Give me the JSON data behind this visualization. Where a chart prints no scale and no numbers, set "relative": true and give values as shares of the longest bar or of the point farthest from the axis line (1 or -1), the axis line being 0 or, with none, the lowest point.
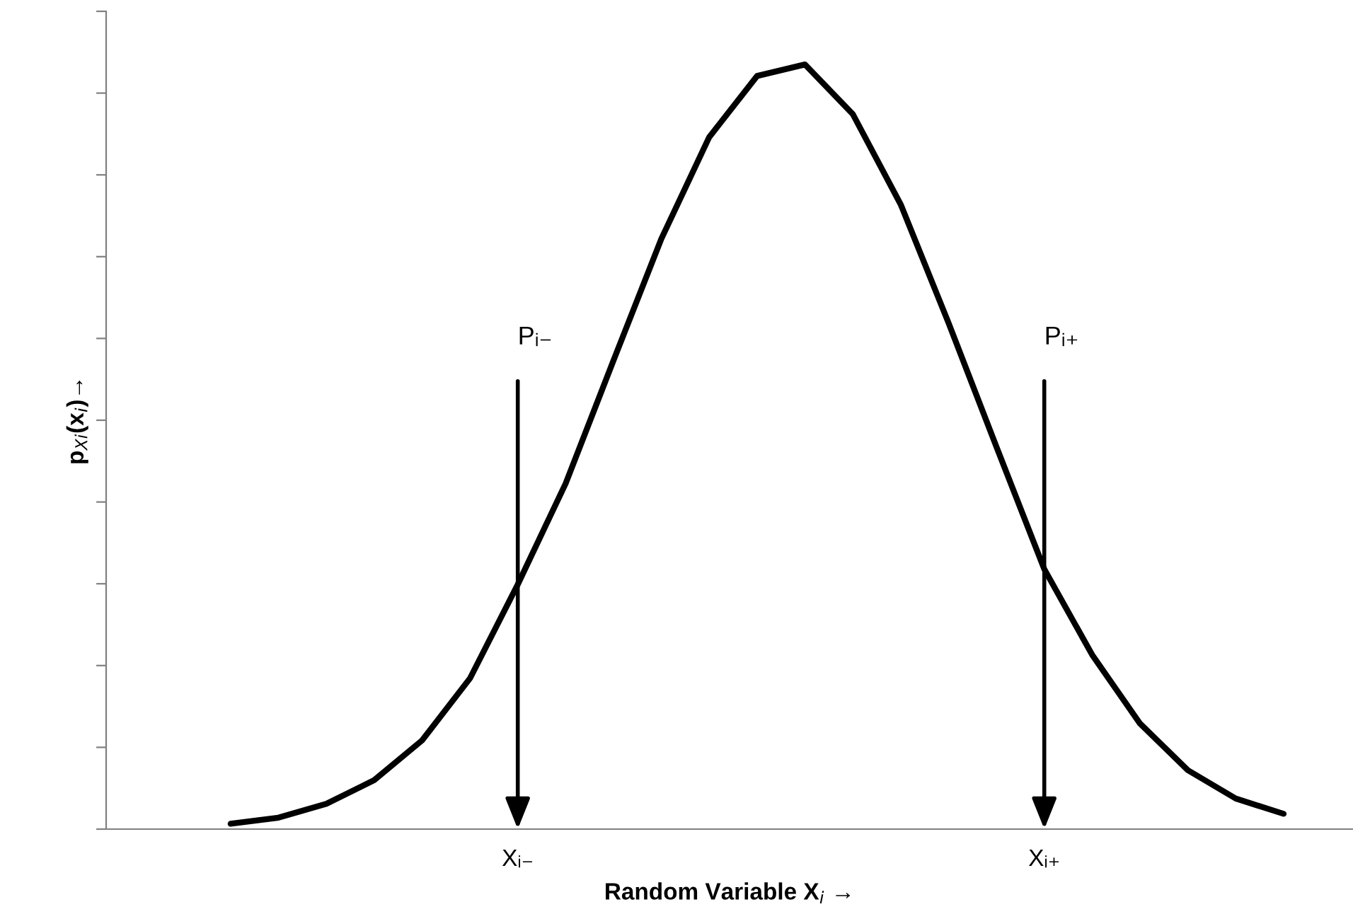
{
  "chart_data": {
    "type": "line",
    "relative": true,
    "xlabel": "Random Variable X$_{i}$ →",
    "ylabel": "p$_{Xi}$(x$_{i}$)→",
    "categories": [
      null,
      null,
      null,
      null,
      null,
      null,
      "Xᵢ₋",
      null,
      null,
      null,
      null,
      null,
      null,
      null,
      null,
      null,
      null,
      "Xᵢ₊",
      null,
      null,
      null,
      null,
      null
    ],
    "series": [
      {
        "color": "#000000",
        "values": [
          0.007,
          0.015,
          0.033,
          0.064,
          0.116,
          0.197,
          0.32,
          0.452,
          0.613,
          0.772,
          0.905,
          0.985,
          1,
          0.935,
          0.817,
          0.662,
          0.5,
          0.34,
          0.228,
          0.138,
          0.077,
          0.04,
          0.02
        ]
      }
    ],
    "annotations": [
      "Pᵢ₋",
      "Pᵢ₊"
    ],
    "tick_labels": "x",
    "grid": false,
    "marker": "none",
    "line_style": "solid"
  }
}
